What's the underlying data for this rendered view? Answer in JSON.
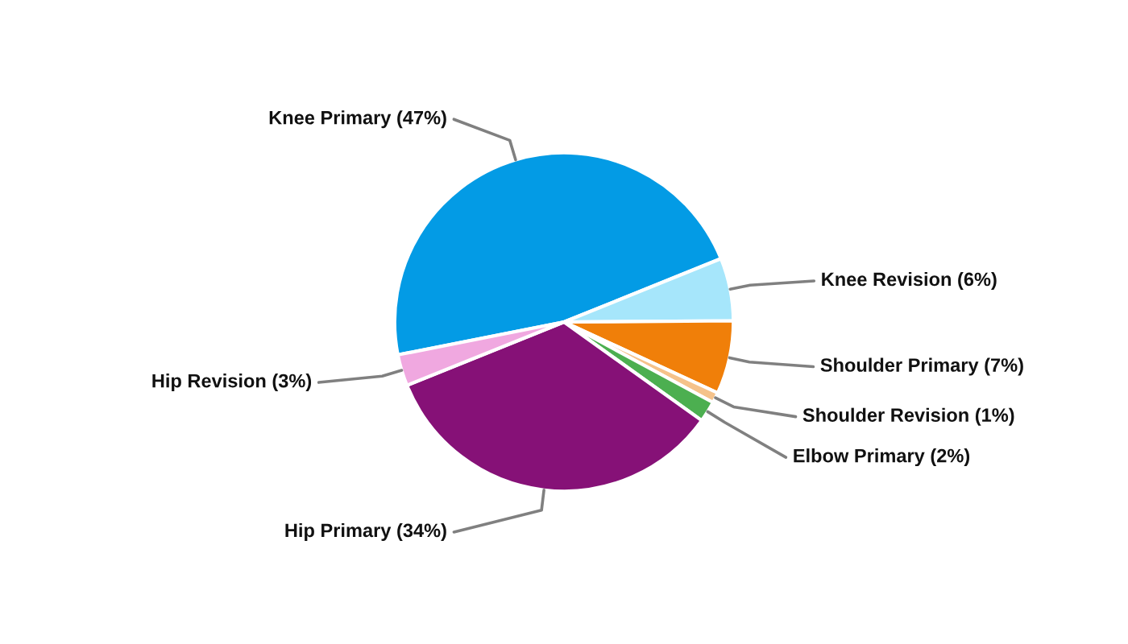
{
  "chart_data": {
    "type": "pie",
    "categories": [
      "Knee Primary",
      "Knee Revision",
      "Shoulder Primary",
      "Shoulder Revision",
      "Elbow Primary",
      "Hip Primary",
      "Hip Revision"
    ],
    "values": [
      47,
      6,
      7,
      1,
      2,
      34,
      3
    ],
    "value_labels": [
      "(47%)",
      "(6%)",
      "(7%)",
      "(1%)",
      "(2%)",
      "(34%)",
      "(3%)"
    ],
    "colors": [
      "#039be5",
      "#a6e6fb",
      "#f07f09",
      "#f5c28a",
      "#4caf50",
      "#861177",
      "#f0a8e0"
    ],
    "legend": false
  }
}
